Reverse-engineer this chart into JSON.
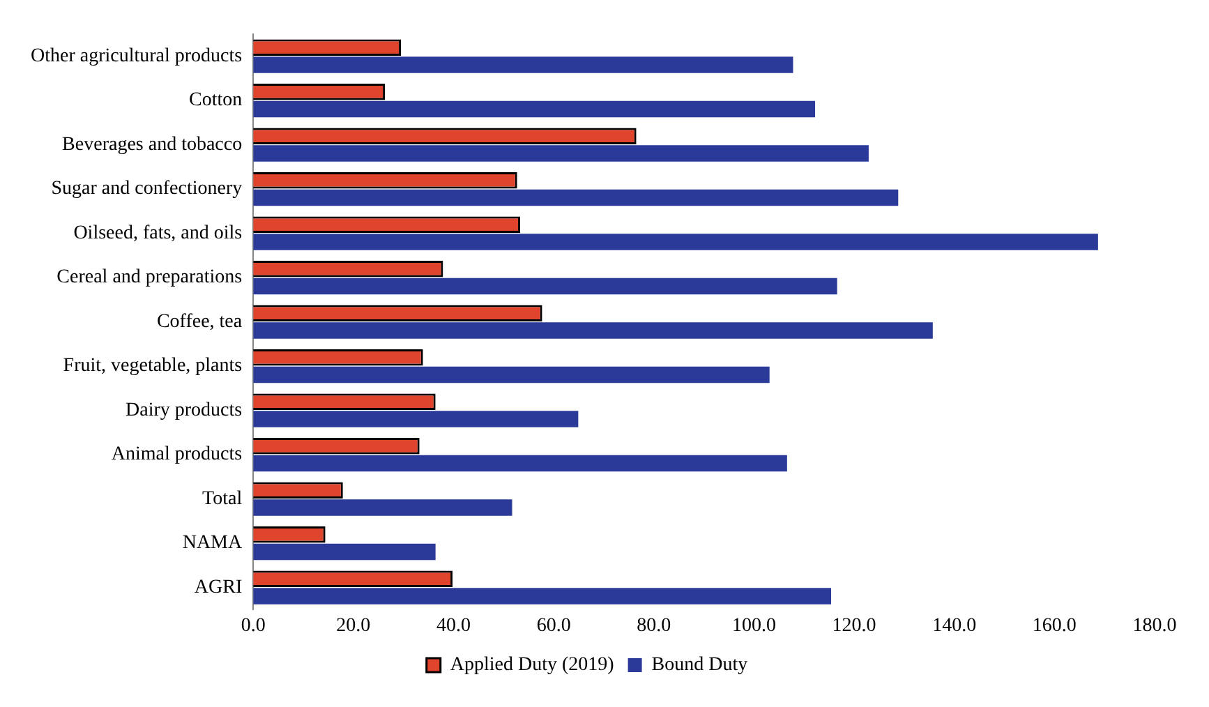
{
  "chart_data": {
    "type": "bar",
    "orientation": "horizontal",
    "categories": [
      "Other agricultural products",
      "Cotton",
      "Beverages and tobacco",
      "Sugar and confectionery",
      "Oilseed, fats, and oils",
      "Cereal and preparations",
      "Coffee, tea",
      "Fruit, vegetable, plants",
      "Dairy products",
      "Animal products",
      "Total",
      "NAMA",
      "AGRI"
    ],
    "series": [
      {
        "name": "Applied Duty (2019)",
        "color": "#e0442c",
        "values": [
          29.5,
          26.3,
          76.5,
          52.7,
          53.3,
          37.9,
          57.7,
          33.9,
          36.4,
          33.2,
          17.9,
          14.4,
          39.8
        ]
      },
      {
        "name": "Bound Duty",
        "color": "#2b3a98",
        "values": [
          107.8,
          112.2,
          122.9,
          128.8,
          168.7,
          116.6,
          135.7,
          103.1,
          64.9,
          106.6,
          51.7,
          36.4,
          115.4
        ]
      }
    ],
    "xlim": [
      0,
      180
    ],
    "xticks": [
      {
        "value": 0,
        "label": "0.0"
      },
      {
        "value": 20,
        "label": "20.0"
      },
      {
        "value": 40,
        "label": "40.0"
      },
      {
        "value": 60,
        "label": "60.0"
      },
      {
        "value": 80,
        "label": "80.0"
      },
      {
        "value": 100,
        "label": "100.0"
      },
      {
        "value": 120,
        "label": "120.0"
      },
      {
        "value": 140,
        "label": "140.0"
      },
      {
        "value": 160,
        "label": "160.0"
      },
      {
        "value": 180,
        "label": "180.0"
      }
    ],
    "grid": false,
    "legend": "bottom"
  }
}
